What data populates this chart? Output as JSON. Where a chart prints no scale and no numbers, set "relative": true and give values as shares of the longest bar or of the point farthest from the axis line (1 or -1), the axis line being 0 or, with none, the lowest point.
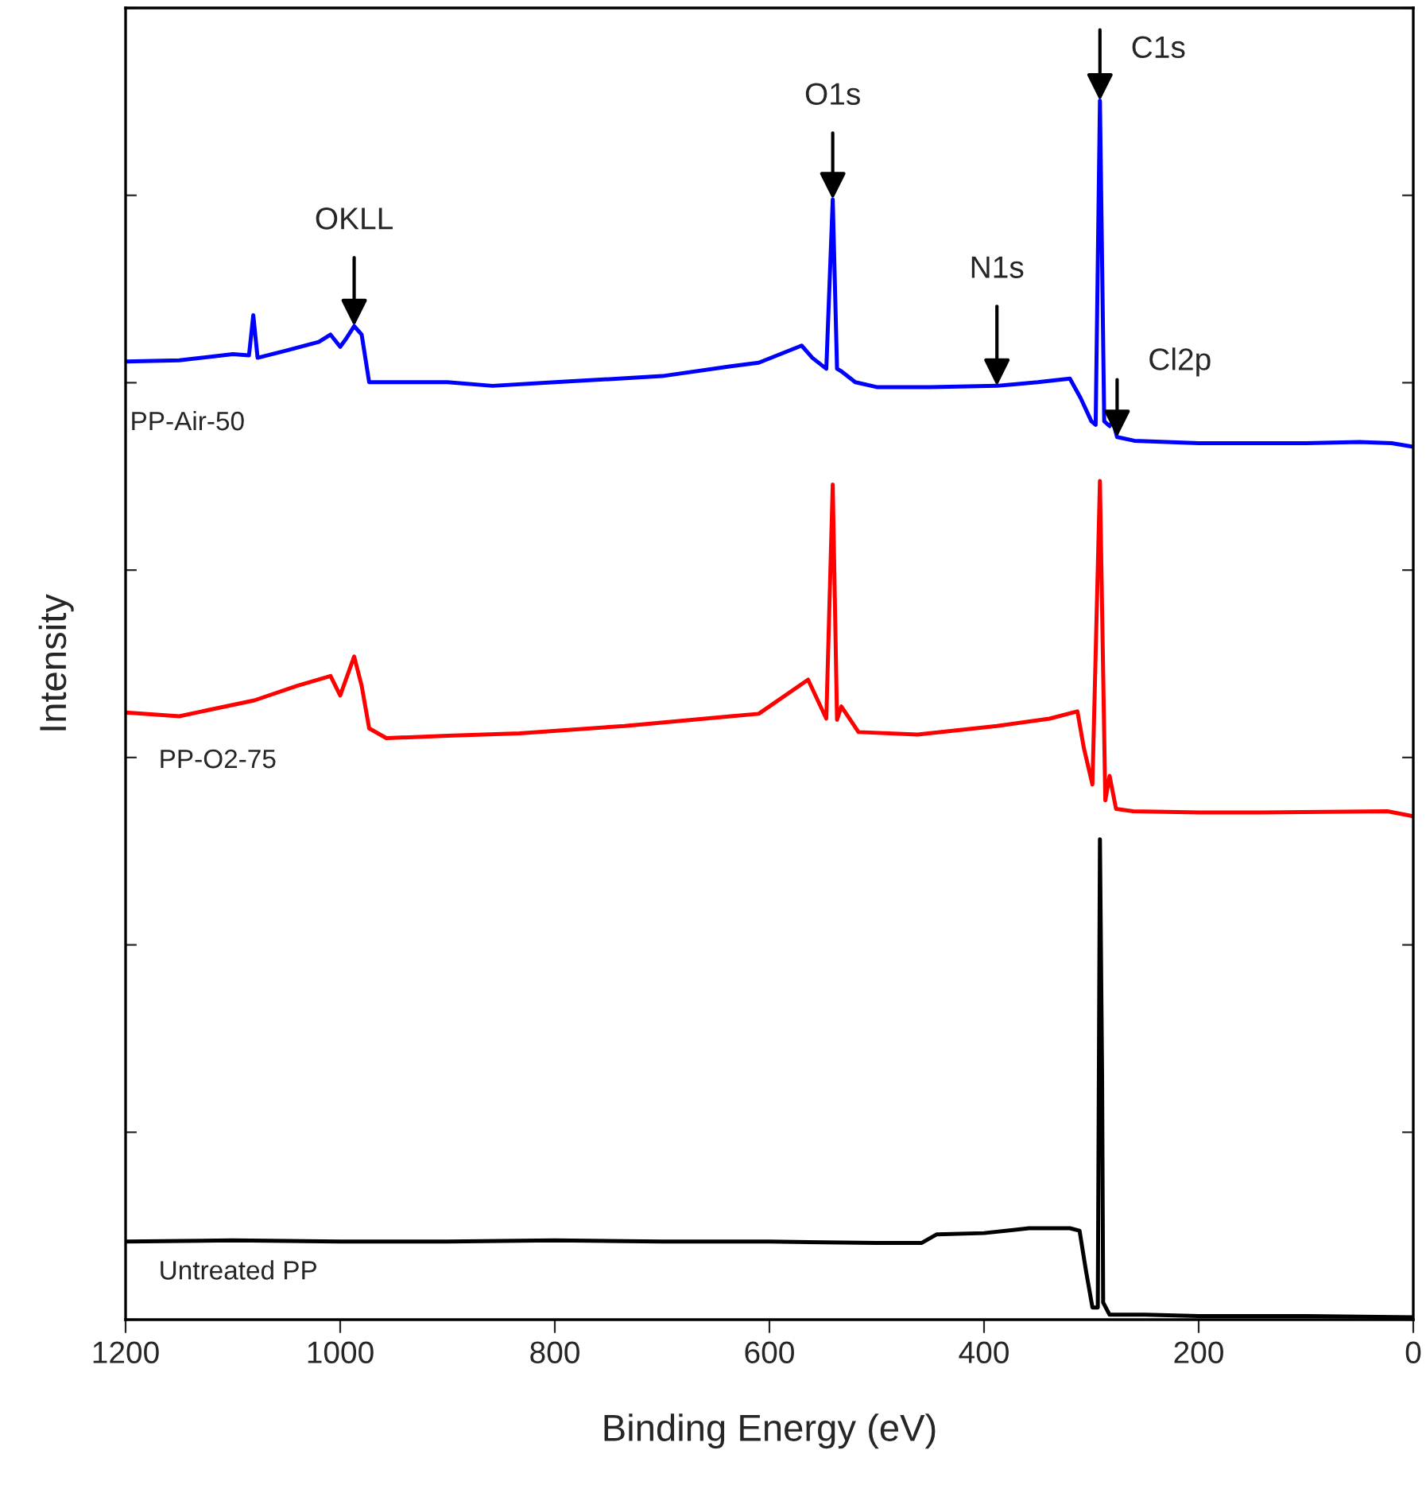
{
  "chart_data": {
    "type": "line",
    "xlabel": "Binding Energy (eV)",
    "ylabel": "Intensity",
    "relative": true,
    "xlim": [
      1200,
      0
    ],
    "xticks": [
      1200,
      1000,
      800,
      600,
      400,
      200,
      0
    ],
    "grid": false,
    "legend": false,
    "marker": "none",
    "line_style": "solid",
    "series": [
      {
        "name": "PP-Air-50",
        "color": "#0000ff",
        "x": [
          1200,
          1150,
          1100,
          1085,
          1081,
          1077,
          1050,
          1020,
          1009,
          1000,
          995,
          987,
          980,
          973,
          965,
          900,
          858,
          800,
          700,
          636,
          610,
          570,
          560,
          547,
          541,
          537,
          533,
          520,
          500,
          450,
          388,
          350,
          320,
          310,
          300,
          296,
          292,
          288,
          283,
          280,
          276,
          260,
          200,
          100,
          50,
          20,
          0
        ],
        "values": [
          0.786,
          0.787,
          0.792,
          0.791,
          0.824,
          0.789,
          0.795,
          0.802,
          0.808,
          0.798,
          0.804,
          0.815,
          0.808,
          0.769,
          0.769,
          0.769,
          0.766,
          0.769,
          0.774,
          0.782,
          0.785,
          0.799,
          0.789,
          0.78,
          0.919,
          0.78,
          0.778,
          0.769,
          0.765,
          0.765,
          0.766,
          0.769,
          0.772,
          0.756,
          0.737,
          0.734,
          1.0,
          0.737,
          0.733,
          0.737,
          0.724,
          0.721,
          0.719,
          0.719,
          0.72,
          0.719,
          0.716
        ]
      },
      {
        "name": "PP-O2-75",
        "color": "#ff0000",
        "x": [
          1200,
          1150,
          1080,
          1040,
          1009,
          1000,
          987,
          980,
          973,
          957,
          900,
          833,
          735,
          636,
          610,
          564,
          547,
          541,
          537,
          533,
          517,
          462,
          388,
          339,
          313,
          307,
          299,
          292,
          287,
          283,
          277,
          261,
          200,
          142,
          24,
          0
        ],
        "values": [
          0.498,
          0.495,
          0.508,
          0.52,
          0.528,
          0.512,
          0.544,
          0.52,
          0.485,
          0.477,
          0.479,
          0.481,
          0.487,
          0.495,
          0.497,
          0.525,
          0.493,
          0.685,
          0.492,
          0.503,
          0.482,
          0.48,
          0.487,
          0.493,
          0.499,
          0.469,
          0.439,
          0.688,
          0.426,
          0.446,
          0.419,
          0.417,
          0.416,
          0.416,
          0.417,
          0.413
        ]
      },
      {
        "name": "Untreated PP",
        "color": "#000000",
        "x": [
          1200,
          1100,
          1000,
          900,
          800,
          700,
          600,
          500,
          458,
          444,
          400,
          358,
          320,
          311,
          305,
          299,
          294,
          292,
          290,
          289,
          283,
          250,
          200,
          100,
          0
        ],
        "values": [
          0.064,
          0.065,
          0.064,
          0.064,
          0.065,
          0.064,
          0.064,
          0.063,
          0.063,
          0.07,
          0.071,
          0.075,
          0.075,
          0.073,
          0.04,
          0.01,
          0.01,
          0.394,
          0.2,
          0.014,
          0.004,
          0.004,
          0.003,
          0.003,
          0.002
        ]
      }
    ],
    "annotations": [
      {
        "text": "OKLL",
        "x": 987,
        "y": 0.815
      },
      {
        "text": "O1s",
        "x": 541,
        "y": 0.919
      },
      {
        "text": "N1s",
        "x": 388,
        "y": 0.766
      },
      {
        "text": "C1s",
        "x": 292,
        "y": 1.0
      },
      {
        "text": "Cl2p",
        "x": 276,
        "y": 0.724
      }
    ]
  }
}
